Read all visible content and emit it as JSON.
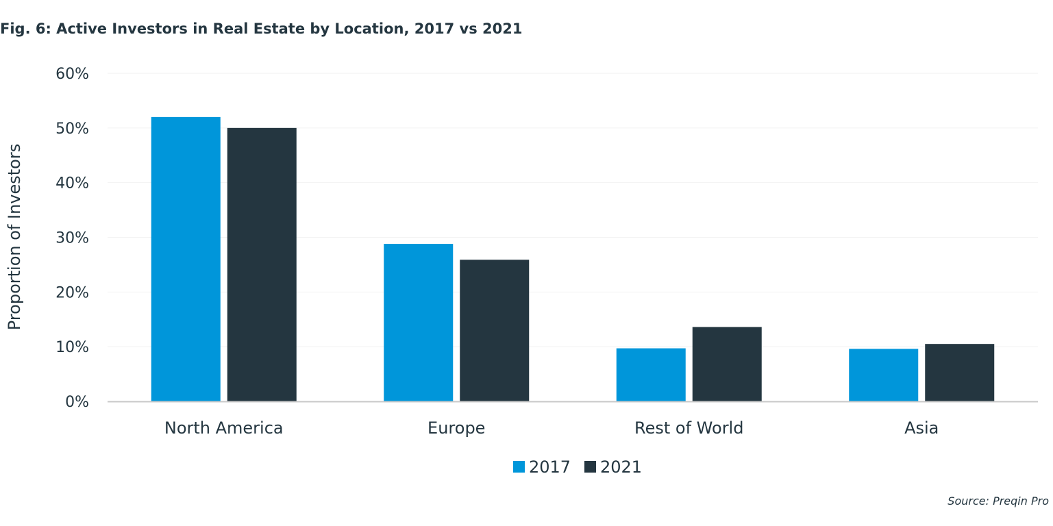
{
  "title": "Fig. 6: Active Investors in Real Estate by Location, 2017 vs 2021",
  "source": "Source: Preqin Pro",
  "colors": {
    "series_2017": "#0096da",
    "series_2021": "#243640",
    "grid": "#f2f2f2",
    "axis": "#c8c8c8",
    "text": "#243640"
  },
  "chart_data": {
    "type": "bar",
    "ylabel": "Proportion of Investors",
    "xlabel": "",
    "ylim": [
      0,
      60
    ],
    "yticks": [
      "0%",
      "10%",
      "20%",
      "30%",
      "40%",
      "50%",
      "60%"
    ],
    "ytick_values": [
      0,
      10,
      20,
      30,
      40,
      50,
      60
    ],
    "categories": [
      "North America",
      "Europe",
      "Rest of World",
      "Asia"
    ],
    "series": [
      {
        "name": "2017",
        "values": [
          52,
          28.8,
          9.7,
          9.6
        ]
      },
      {
        "name": "2021",
        "values": [
          50,
          25.9,
          13.6,
          10.5
        ]
      }
    ],
    "legend_position": "bottom-center",
    "grid": true
  }
}
